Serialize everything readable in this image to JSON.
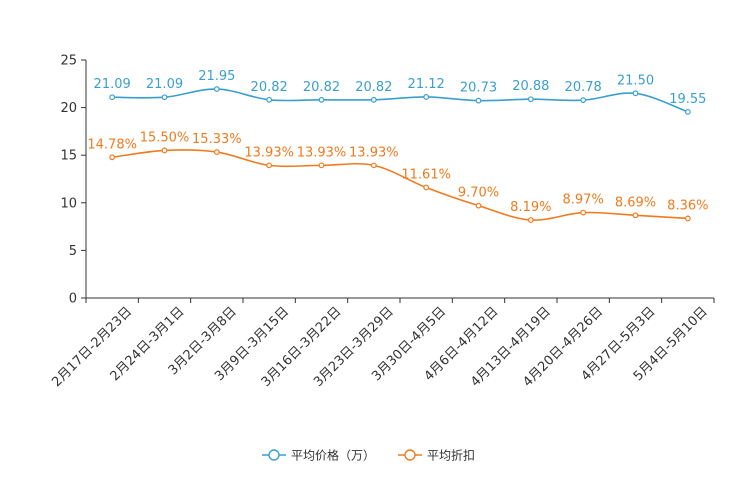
{
  "chart_data": {
    "type": "line",
    "title": "",
    "xlabel": "",
    "ylabel": "",
    "ylim": [
      0,
      25
    ],
    "yticks": [
      "0",
      "5",
      "10",
      "15",
      "20",
      "25"
    ],
    "grid": false,
    "legend_position": "bottom-center",
    "categories": [
      "2月17日-2月23日",
      "2月24日-3月1日",
      "3月2日-3月8日",
      "3月9日-3月15日",
      "3月16日-3月22日",
      "3月23日-3月29日",
      "3月30日-4月5日",
      "4月6日-4月12日",
      "4月13日-4月19日",
      "4月20日-4月26日",
      "4月27日-5月3日",
      "5月4日-5月10日"
    ],
    "series": [
      {
        "name": "平均价格（万）",
        "color": "#3a9fcf",
        "values": [
          21.09,
          21.09,
          21.95,
          20.82,
          20.82,
          20.82,
          21.12,
          20.73,
          20.88,
          20.78,
          21.5,
          19.55
        ],
        "labels": [
          "21.09",
          "21.09",
          "21.95",
          "20.82",
          "20.82",
          "20.82",
          "21.12",
          "20.73",
          "20.88",
          "20.78",
          "21.50",
          "19.55"
        ]
      },
      {
        "name": "平均折扣",
        "color": "#f07b1f",
        "values": [
          14.78,
          15.5,
          15.33,
          13.93,
          13.93,
          13.93,
          11.61,
          9.7,
          8.19,
          8.97,
          8.69,
          8.36
        ],
        "labels": [
          "14.78%",
          "15.50%",
          "15.33%",
          "13.93%",
          "13.93%",
          "13.93%",
          "11.61%",
          "9.70%",
          "8.19%",
          "8.97%",
          "8.69%",
          "8.36%"
        ]
      }
    ]
  }
}
